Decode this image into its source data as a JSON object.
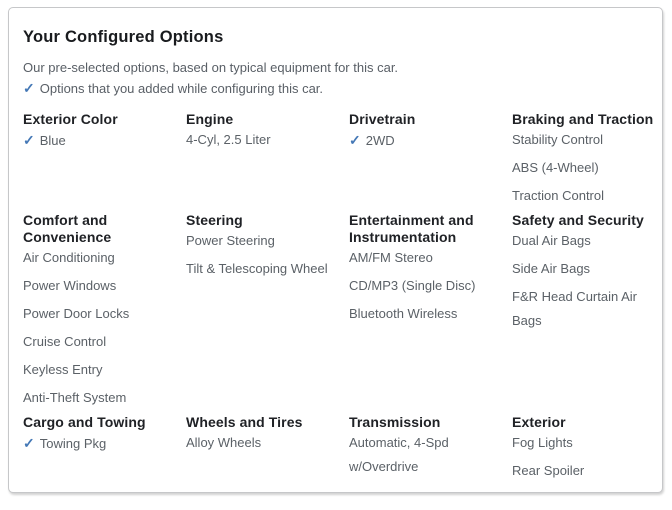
{
  "panel": {
    "title": "Your Configured Options",
    "subtitle": "Our pre-selected options, based on typical equipment for this car.",
    "legend": "Options that you added while configuring this car.",
    "checkmark_glyph": "✓",
    "accent_color": "#4478b6"
  },
  "sections": [
    {
      "title": "Exterior Color",
      "items": [
        {
          "label": "Blue",
          "added": true
        }
      ]
    },
    {
      "title": "Engine",
      "items": [
        {
          "label": "4-Cyl, 2.5 Liter",
          "added": false
        }
      ]
    },
    {
      "title": "Drivetrain",
      "items": [
        {
          "label": "2WD",
          "added": true
        }
      ]
    },
    {
      "title": "Braking and Traction",
      "items": [
        {
          "label": "Stability Control",
          "added": false
        },
        {
          "label": "ABS (4-Wheel)",
          "added": false
        },
        {
          "label": "Traction Control",
          "added": false
        }
      ]
    },
    {
      "title": "Comfort and Convenience",
      "items": [
        {
          "label": "Air Conditioning",
          "added": false
        },
        {
          "label": "Power Windows",
          "added": false
        },
        {
          "label": "Power Door Locks",
          "added": false
        },
        {
          "label": "Cruise Control",
          "added": false
        },
        {
          "label": "Keyless Entry",
          "added": false
        },
        {
          "label": "Anti-Theft System",
          "added": false
        }
      ]
    },
    {
      "title": "Steering",
      "items": [
        {
          "label": "Power Steering",
          "added": false
        },
        {
          "label": "Tilt & Telescoping Wheel",
          "added": false
        }
      ]
    },
    {
      "title": "Entertainment and Instrumentation",
      "items": [
        {
          "label": "AM/FM Stereo",
          "added": false
        },
        {
          "label": "CD/MP3 (Single Disc)",
          "added": false
        },
        {
          "label": "Bluetooth Wireless",
          "added": false
        }
      ]
    },
    {
      "title": "Safety and Security",
      "items": [
        {
          "label": "Dual Air Bags",
          "added": false
        },
        {
          "label": "Side Air Bags",
          "added": false
        },
        {
          "label": "F&R Head Curtain Air Bags",
          "added": false
        }
      ]
    },
    {
      "title": "Cargo and Towing",
      "items": [
        {
          "label": "Towing Pkg",
          "added": true
        }
      ]
    },
    {
      "title": "Wheels and Tires",
      "items": [
        {
          "label": "Alloy Wheels",
          "added": false
        }
      ]
    },
    {
      "title": "Transmission",
      "items": [
        {
          "label": "Automatic, 4-Spd w/Overdrive",
          "added": false
        }
      ]
    },
    {
      "title": "Exterior",
      "items": [
        {
          "label": "Fog Lights",
          "added": false
        },
        {
          "label": "Rear Spoiler",
          "added": false
        }
      ]
    }
  ]
}
